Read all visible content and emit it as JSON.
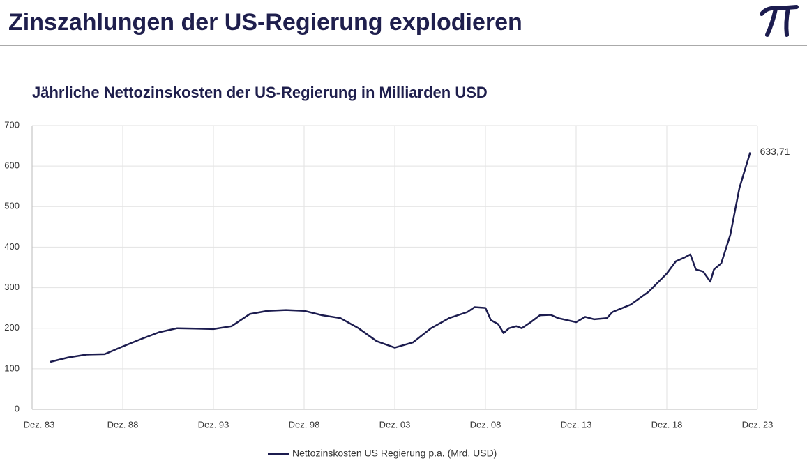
{
  "chart_data": {
    "type": "line",
    "title": "Zinszahlungen der US-Regierung explodieren",
    "subtitle": "Jährliche Nettozinskosten der US-Regierung in Milliarden USD",
    "x": [
      1984,
      1985,
      1986,
      1987,
      1988,
      1989,
      1990,
      1991,
      1992,
      1993,
      1994,
      1995,
      1996,
      1997,
      1998,
      1999,
      2000,
      2001,
      2002,
      2003,
      2004,
      2005,
      2006,
      2007,
      2007.4,
      2008,
      2008.3,
      2008.7,
      2009,
      2009.3,
      2009.7,
      2010,
      2010.5,
      2011,
      2011.6,
      2012,
      2013,
      2013.5,
      2014,
      2014.7,
      2015,
      2016,
      2017,
      2018,
      2018.5,
      2019,
      2019.3,
      2019.6,
      2020,
      2020.4,
      2020.6,
      2021,
      2021.5,
      2022,
      2022.3,
      2022.6
    ],
    "series": [
      {
        "name": "Nettozinskosten US Regierung p.a. (Mrd. USD)",
        "color": "#1c1c4f",
        "values": [
          117,
          128,
          135,
          136,
          155,
          173,
          190,
          200,
          199,
          198,
          205,
          235,
          243,
          245,
          243,
          232,
          225,
          200,
          168,
          152,
          165,
          200,
          225,
          240,
          252,
          250,
          220,
          210,
          188,
          200,
          205,
          200,
          215,
          232,
          233,
          225,
          215,
          228,
          222,
          225,
          240,
          258,
          290,
          335,
          365,
          375,
          382,
          345,
          340,
          315,
          345,
          360,
          430,
          545,
          590,
          633.71
        ],
        "value_labels": {
          "55": "633,71"
        }
      }
    ],
    "xlim": [
      1983,
      2023
    ],
    "xticks": [
      {
        "value": 1983,
        "label": "Dez. 83"
      },
      {
        "value": 1988,
        "label": "Dez. 88"
      },
      {
        "value": 1993,
        "label": "Dez. 93"
      },
      {
        "value": 1998,
        "label": "Dez. 98"
      },
      {
        "value": 2003,
        "label": "Dez. 03"
      },
      {
        "value": 2008,
        "label": "Dez. 08"
      },
      {
        "value": 2013,
        "label": "Dez. 13"
      },
      {
        "value": 2018,
        "label": "Dez. 18"
      },
      {
        "value": 2023,
        "label": "Dez. 23"
      }
    ],
    "ylim": [
      0,
      700
    ],
    "yticks": [
      0,
      100,
      200,
      300,
      400,
      500,
      600,
      700
    ],
    "grid": true
  }
}
